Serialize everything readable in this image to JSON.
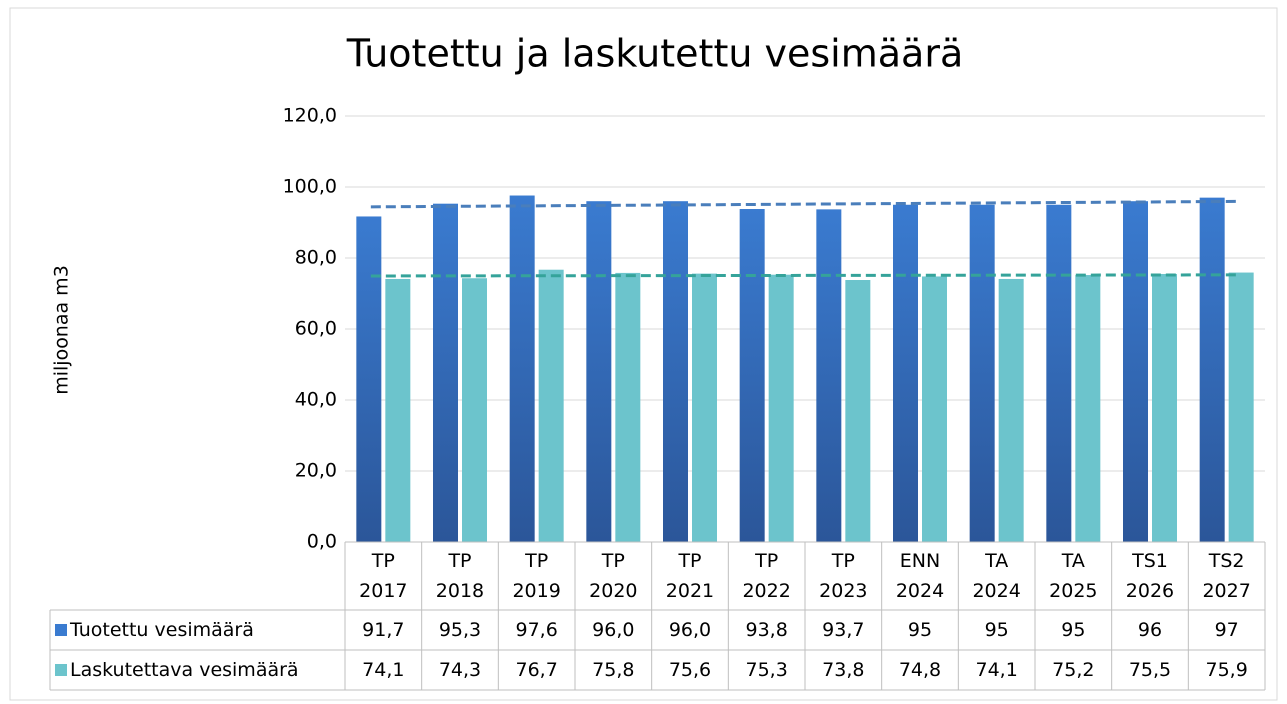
{
  "chart_data": {
    "type": "bar",
    "title": "Tuotettu ja laskutettu vesimäärä",
    "y_label": "miljoonaa m3",
    "categories": [
      "TP 2017",
      "TP 2018",
      "TP 2019",
      "TP 2020",
      "TP 2021",
      "TP 2022",
      "TP 2023",
      "ENN 2024",
      "TA 2024",
      "TA 2025",
      "TS1 2026",
      "TS2 2027"
    ],
    "series": [
      {
        "name": "Tuotettu vesimäärä",
        "color": "#3a7bd0",
        "trend_color": "#4a7ebb",
        "values": [
          91.7,
          95.3,
          97.6,
          96.0,
          96.0,
          93.8,
          93.7,
          95,
          95,
          95,
          96,
          97
        ],
        "value_labels": [
          "91,7",
          "95,3",
          "97,6",
          "96,0",
          "96,0",
          "93,8",
          "93,7",
          "95",
          "95",
          "95",
          "96",
          "97"
        ]
      },
      {
        "name": "Laskutettava vesimäärä",
        "color": "#6cc4cc",
        "trend_color": "#35a39a",
        "values": [
          74.1,
          74.3,
          76.7,
          75.8,
          75.6,
          75.3,
          73.8,
          74.8,
          74.1,
          75.2,
          75.5,
          75.9
        ],
        "value_labels": [
          "74,1",
          "74,3",
          "76,7",
          "75,8",
          "75,6",
          "75,3",
          "73,8",
          "74,8",
          "74,1",
          "75,2",
          "75,5",
          "75,9"
        ]
      }
    ],
    "ylim": [
      0,
      120
    ],
    "yticks": [
      {
        "value": 0,
        "label": "0,0"
      },
      {
        "value": 20,
        "label": "20,0"
      },
      {
        "value": 40,
        "label": "40,0"
      },
      {
        "value": 60,
        "label": "60,0"
      },
      {
        "value": 80,
        "label": "80,0"
      },
      {
        "value": 100,
        "label": "100,0"
      },
      {
        "value": 120,
        "label": "120,0"
      }
    ],
    "grid": true,
    "trendline": true,
    "data_table": true
  }
}
